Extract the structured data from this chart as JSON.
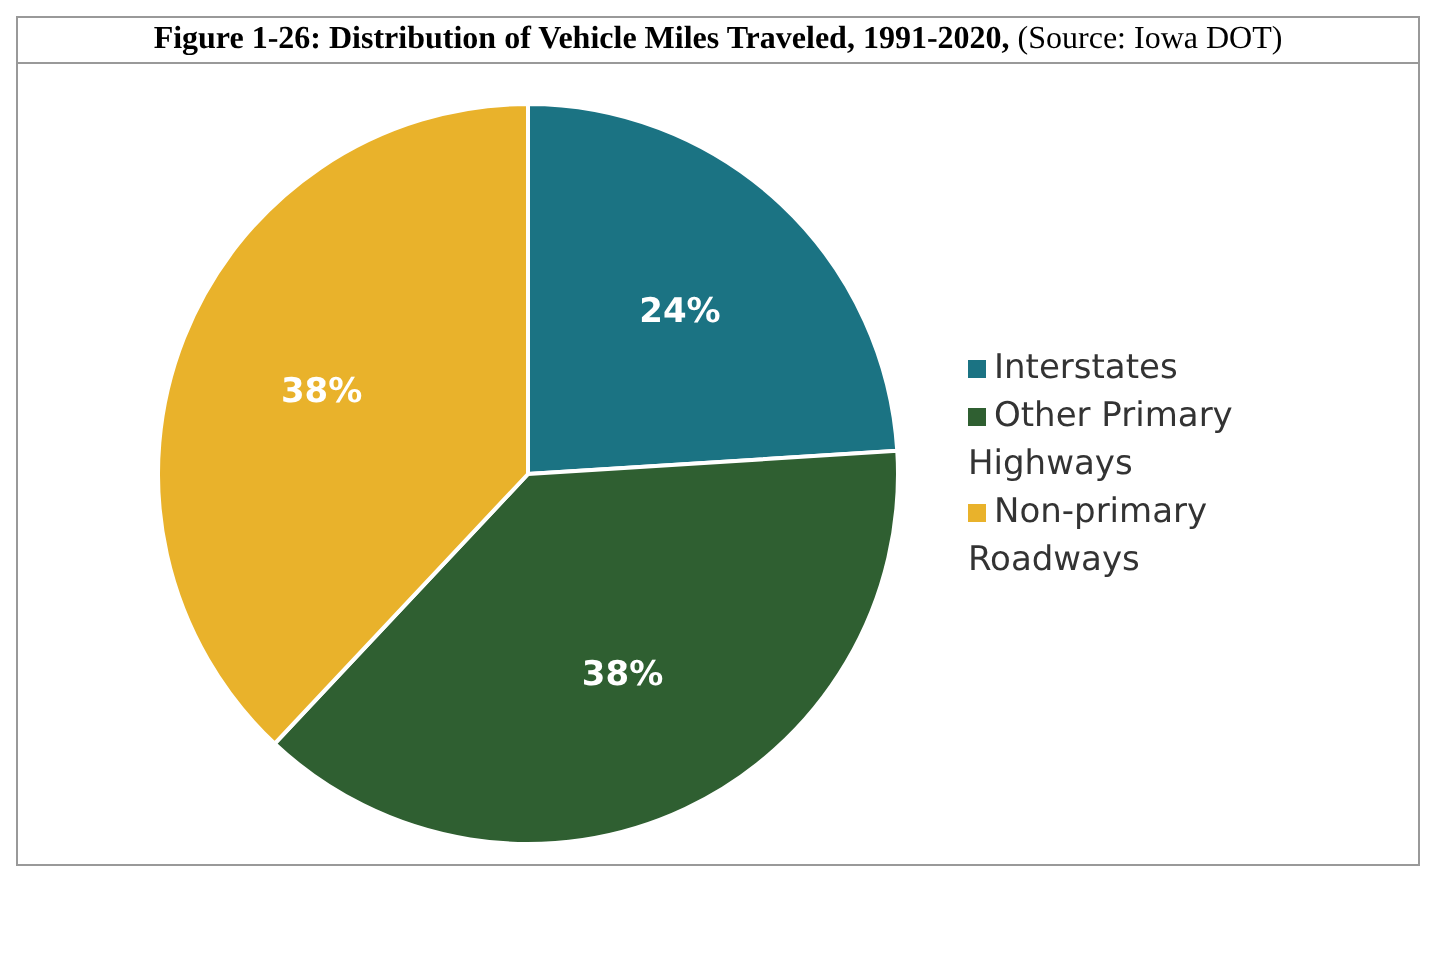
{
  "chart_data": {
    "type": "pie",
    "title": "Figure 1-26: Distribution of Vehicle Miles Traveled, 1991-2020,",
    "annotations": [
      "(Source: Iowa DOT)"
    ],
    "categories": [
      "Interstates",
      "Other Primary Highways",
      "Non-primary Roadways"
    ],
    "values": [
      24,
      38,
      38
    ],
    "colors": [
      "#1b7383",
      "#2f5f31",
      "#e9b22b"
    ],
    "value_labels": [
      "24%",
      "38%",
      "38%"
    ],
    "legend": "right"
  }
}
